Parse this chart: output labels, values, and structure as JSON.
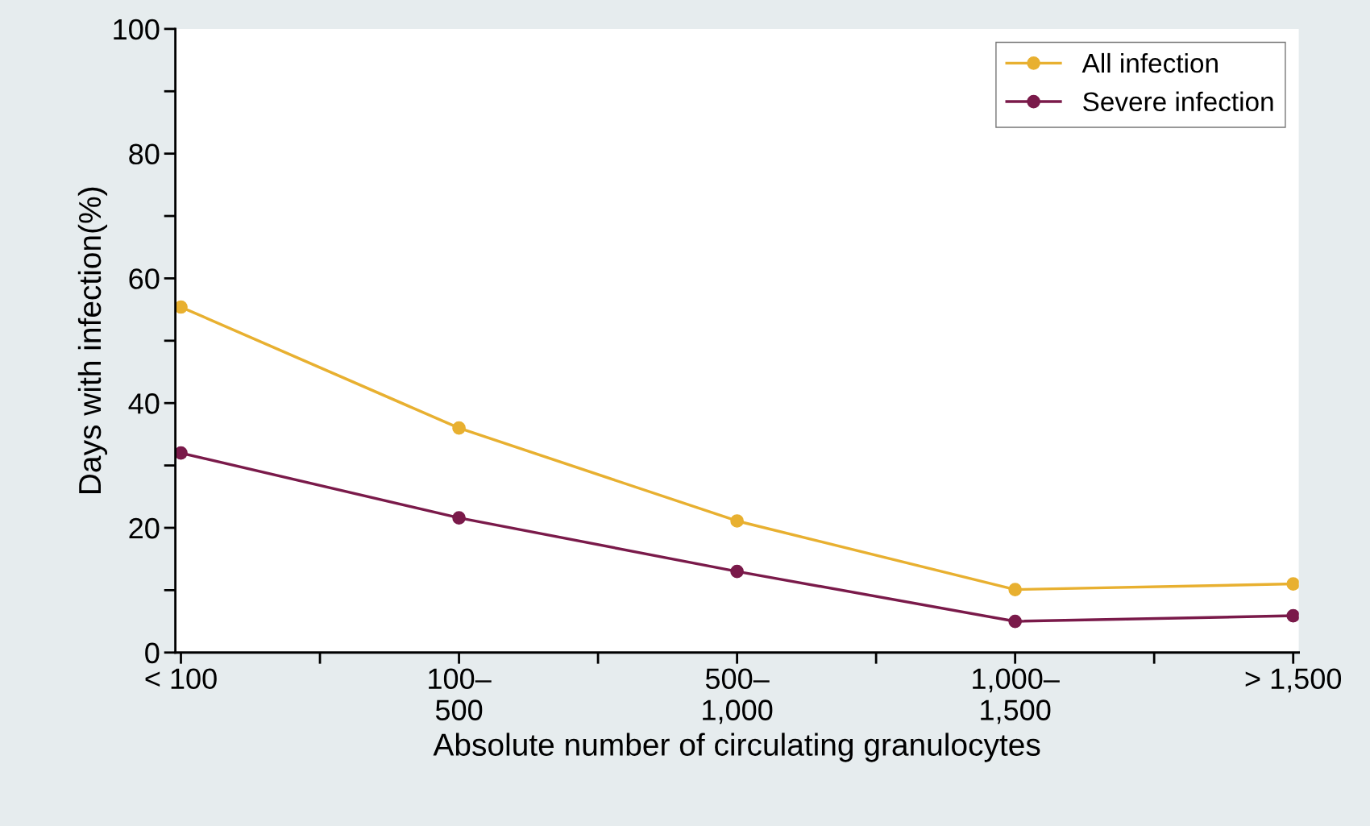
{
  "chart_data": {
    "type": "line",
    "xlabel": "Absolute number of circulating granulocytes",
    "ylabel": "Days with infection(%)",
    "categories": [
      "< 100",
      "100–\n500",
      "500–\n1,000",
      "1,000–\n1,500",
      "> 1,500"
    ],
    "series": [
      {
        "name": "All infection",
        "color": "#e8b030",
        "values": [
          55.4,
          36,
          21.1,
          10.1,
          11
        ]
      },
      {
        "name": "Severe infection",
        "color": "#7a1a4a",
        "values": [
          32,
          21.6,
          13,
          5,
          5.9
        ]
      }
    ],
    "ylim": [
      0,
      100
    ],
    "yticks": [
      0,
      {
        "value": 10,
        "label": null
      },
      20,
      {
        "value": 30,
        "label": null
      },
      40,
      {
        "value": 50,
        "label": null
      },
      60,
      {
        "value": 70,
        "label": null
      },
      80,
      {
        "value": 90,
        "label": null
      },
      100
    ],
    "marker": "circle",
    "line_style": "solid",
    "legend": "top right",
    "grid": false
  }
}
